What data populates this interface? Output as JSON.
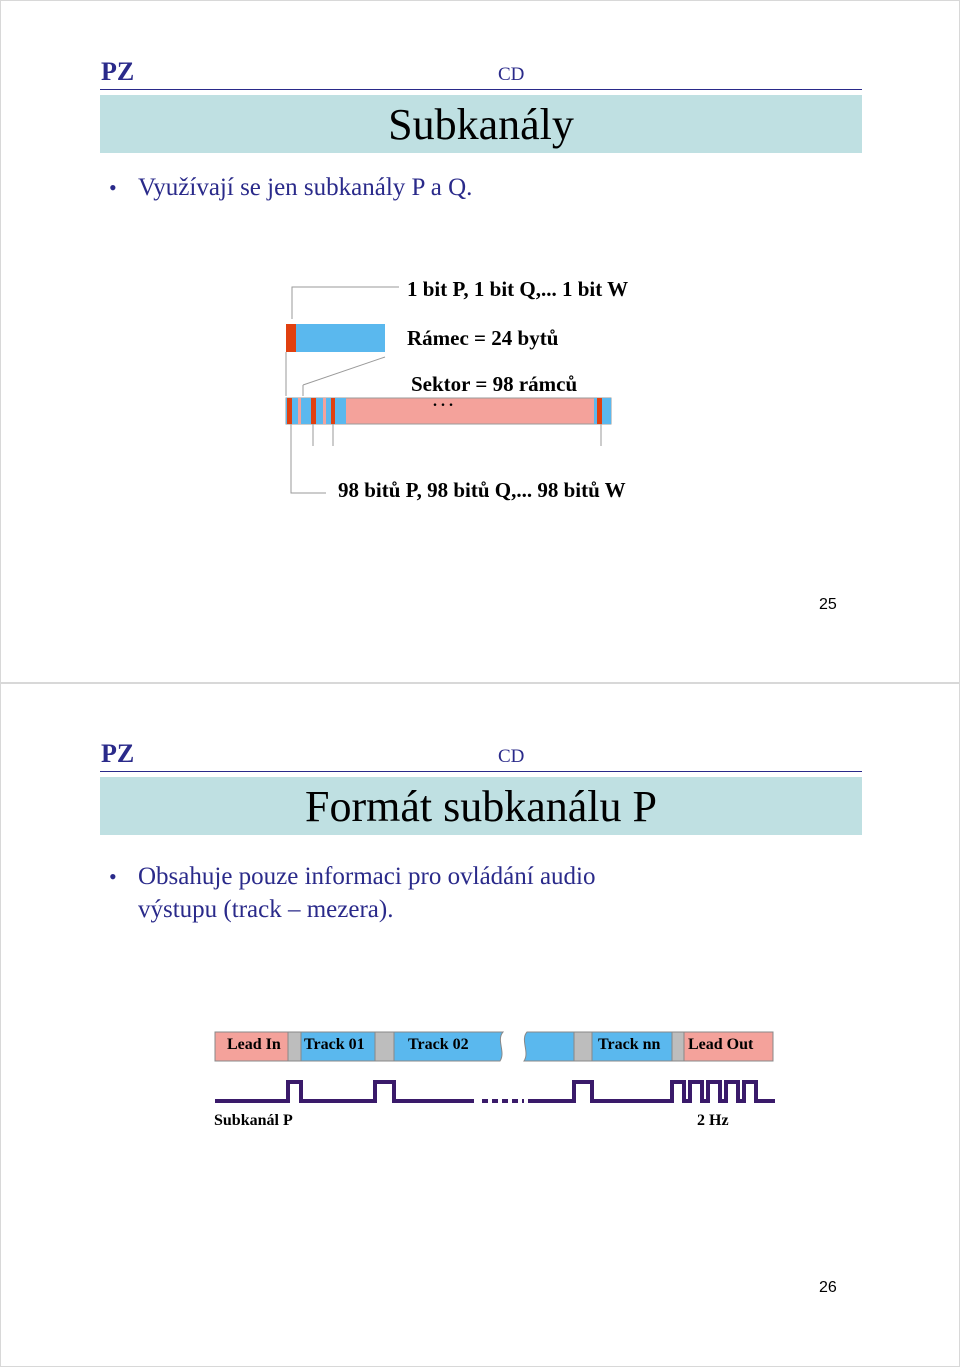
{
  "slide1": {
    "header_left": "PZ",
    "header_right": "CD",
    "title": "Subkanály",
    "bullet": "Využívají se jen subkanály P a Q.",
    "diagram": {
      "bits_label": "1 bit P, 1 bit Q,... 1 bit W",
      "frame_label": "Rámec = 24 bytů",
      "sector_label": "Sektor = 98 rámců",
      "ellipsis": ". . .",
      "bottom_label": "98 bitů P, 98 bitů Q,... 98 bitů W"
    },
    "page_number": "25"
  },
  "slide2": {
    "header_left": "PZ",
    "header_right": "CD",
    "title": "Formát subkanálu P",
    "bullet_line1": "Obsahuje pouze informaci pro ovládání audio",
    "bullet_line2": "výstupu (track – mezera).",
    "tracks": [
      "Lead In",
      "Track 01",
      "Track 02",
      "Track nn",
      "Lead Out"
    ],
    "signal_label_left": "Subkanál P",
    "signal_label_right": "2 Hz",
    "page_number": "26"
  },
  "colors": {
    "header_blue": "#2a2a8a",
    "title_bar": "#bfe0e2",
    "segment_red": "#f4a29b",
    "segment_blue": "#5ab8ee",
    "marker_red": "#e04010",
    "gap_grey": "#bdbdbd",
    "signal_purple": "#3a1a6a"
  }
}
